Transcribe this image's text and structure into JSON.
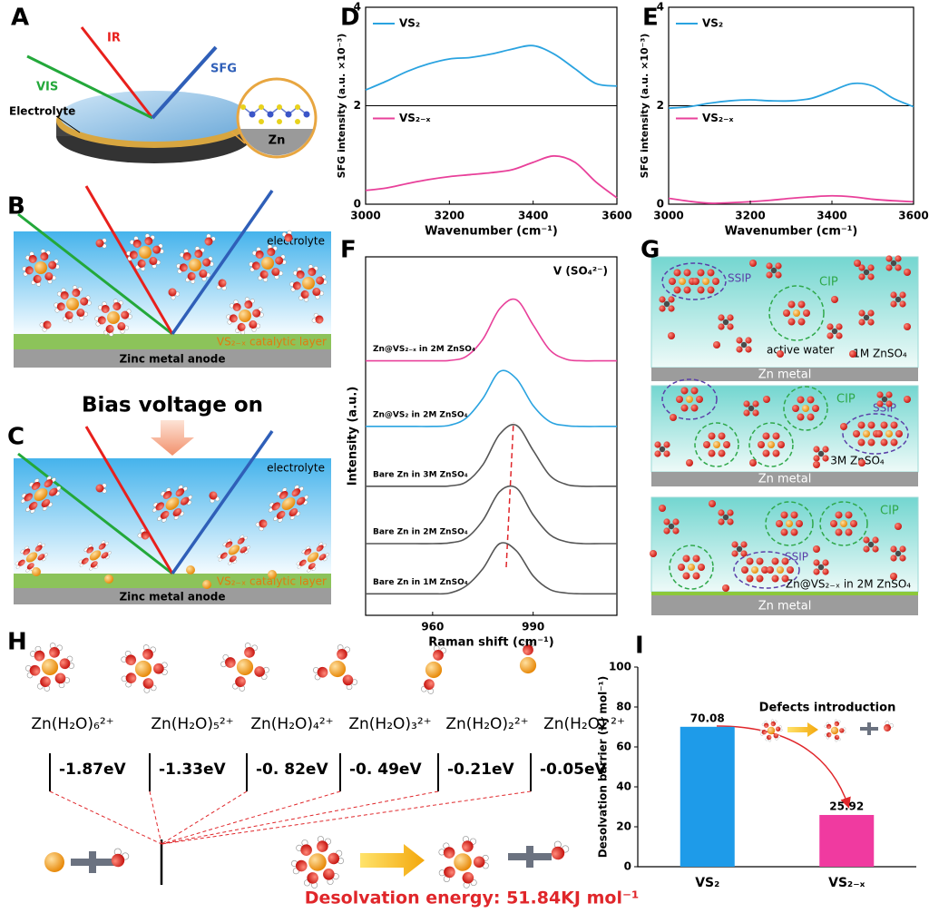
{
  "panel_labels": [
    "A",
    "B",
    "C",
    "D",
    "E",
    "F",
    "G",
    "H",
    "I"
  ],
  "panel_a": {
    "ir": "IR",
    "vis": "VIS",
    "sfg": "SFG",
    "electrolyte": "Electrolyte",
    "zn": "Zn"
  },
  "panel_b": {
    "electrolyte": "electrolyte",
    "layer": "VS₂₋ₓ catalytic layer",
    "anode": "Zinc metal anode"
  },
  "bias": "Bias voltage on",
  "panel_c": {
    "electrolyte": "electrolyte",
    "layer": "VS₂₋ₓ catalytic layer",
    "anode": "Zinc metal anode"
  },
  "panel_g": [
    {
      "ssip": "SSIP",
      "cip": "CIP",
      "water": "active water",
      "solution": "1M ZnSO₄",
      "metal": "Zn metal"
    },
    {
      "cip": "CIP",
      "ssip": "SSIP",
      "solution": "3M ZnSO₄",
      "metal": "Zn metal"
    },
    {
      "cip": "CIP",
      "ssip": "SSIP",
      "solution": "Zn@VS₂₋ₓ in 2M ZnSO₄",
      "metal": "Zn metal"
    }
  ],
  "panel_h": {
    "species": [
      "Zn(H₂O)₆²⁺",
      "Zn(H₂O)₅²⁺",
      "Zn(H₂O)₄²⁺",
      "Zn(H₂O)₃²⁺",
      "Zn(H₂O)₂²⁺",
      "Zn(H₂O) ²⁺"
    ],
    "energies": [
      "-1.87eV",
      "-1.33eV",
      "-0. 82eV",
      "-0. 49eV",
      "-0.21eV",
      "-0.05eV"
    ],
    "desolvation": "Desolvation energy: 51.84KJ mol⁻¹"
  },
  "chart_data": [
    {
      "type": "line",
      "x": [
        3000,
        3050,
        3100,
        3150,
        3200,
        3250,
        3300,
        3350,
        3400,
        3450,
        3500,
        3550,
        3600
      ],
      "series": [
        {
          "name": "VS₂",
          "color": "#2aa3e0",
          "values": [
            2.32,
            2.5,
            2.7,
            2.85,
            2.95,
            2.98,
            3.05,
            3.15,
            3.22,
            3.05,
            2.75,
            2.45,
            2.4
          ]
        },
        {
          "name": "VS₂₋ₓ",
          "color": "#e8409a",
          "values": [
            0.28,
            0.33,
            0.42,
            0.5,
            0.56,
            0.6,
            0.64,
            0.7,
            0.85,
            0.98,
            0.85,
            0.45,
            0.13
          ]
        }
      ],
      "xlim": [
        3000,
        3600
      ],
      "xticks": [
        3000,
        3200,
        3400,
        3600
      ],
      "ylim": [
        0,
        4
      ],
      "yticks": [
        0,
        2,
        4
      ],
      "xlabel": "Wavenumber (cm⁻¹)",
      "ylabel": "SFG intensity (a.u. ×10⁻³)"
    },
    {
      "type": "line",
      "x": [
        3000,
        3050,
        3100,
        3150,
        3200,
        3250,
        3300,
        3350,
        3400,
        3450,
        3500,
        3550,
        3600
      ],
      "series": [
        {
          "name": "VS₂",
          "color": "#2aa3e0",
          "values": [
            1.95,
            1.98,
            2.05,
            2.1,
            2.12,
            2.1,
            2.1,
            2.15,
            2.3,
            2.45,
            2.4,
            2.15,
            1.98
          ]
        },
        {
          "name": "VS₂₋ₓ",
          "color": "#e8409a",
          "values": [
            0.12,
            0.06,
            0.02,
            0.03,
            0.05,
            0.08,
            0.12,
            0.15,
            0.17,
            0.15,
            0.1,
            0.07,
            0.05
          ]
        }
      ],
      "xlim": [
        3000,
        3600
      ],
      "xticks": [
        3000,
        3200,
        3400,
        3600
      ],
      "ylim": [
        0,
        4
      ],
      "yticks": [
        0,
        2,
        4
      ],
      "xlabel": "Wavenumber (cm⁻¹)",
      "ylabel": "SFG intensity (a.u. ×10⁻³)"
    },
    {
      "type": "raman",
      "title": "V (SO₄²⁻)",
      "x": [
        940,
        945,
        950,
        955,
        960,
        965,
        970,
        975,
        980,
        985,
        990,
        995,
        1000,
        1005,
        1010,
        1015
      ],
      "series": [
        {
          "name": "Zn@VS₂₋ₓ in 2M ZnSO₄",
          "color": "#e8409a",
          "values": [
            7.1,
            7.1,
            7.1,
            7.1,
            7.1,
            7.11,
            7.22,
            7.7,
            8.55,
            8.8,
            8.1,
            7.4,
            7.14,
            7.1,
            7.1,
            7.1
          ]
        },
        {
          "name": "Zn@VS₂ in 2M ZnSO₄",
          "color": "#2aa3e0",
          "values": [
            5.27,
            5.27,
            5.27,
            5.27,
            5.27,
            5.3,
            5.5,
            6.05,
            6.8,
            6.6,
            5.85,
            5.4,
            5.29,
            5.27,
            5.27,
            5.27
          ]
        },
        {
          "name": "Bare Zn in 3M ZnSO₄",
          "color": "#555555",
          "values": [
            3.6,
            3.6,
            3.6,
            3.6,
            3.6,
            3.61,
            3.72,
            4.2,
            5.05,
            5.3,
            4.6,
            3.9,
            3.65,
            3.6,
            3.6,
            3.6
          ]
        },
        {
          "name": "Bare Zn in 2M ZnSO₄",
          "color": "#555555",
          "values": [
            2.0,
            2.0,
            2.0,
            2.0,
            2.0,
            2.02,
            2.15,
            2.65,
            3.45,
            3.55,
            2.8,
            2.25,
            2.05,
            2.0,
            2.0,
            2.0
          ]
        },
        {
          "name": "Bare Zn in 1M ZnSO₄",
          "color": "#555555",
          "values": [
            0.6,
            0.6,
            0.6,
            0.6,
            0.6,
            0.62,
            0.82,
            1.3,
            2.0,
            1.8,
            1.1,
            0.72,
            0.62,
            0.6,
            0.6,
            0.6
          ]
        }
      ],
      "xlim": [
        940,
        1015
      ],
      "xticks": [
        960,
        990
      ],
      "ylim": [
        0,
        10
      ],
      "xlabel": "Raman shift (cm⁻¹)",
      "ylabel": "Intensity (a.u.)"
    },
    {
      "type": "bar",
      "categories": [
        "VS₂",
        "VS₂₋ₓ"
      ],
      "values": [
        70.08,
        25.92
      ],
      "colors": [
        "#1e9be9",
        "#f03aa0"
      ],
      "ylim": [
        0,
        100
      ],
      "yticks": [
        0,
        20,
        40,
        60,
        80,
        100
      ],
      "ylabel": "Desolvation barrier (KJ mol⁻¹)",
      "annotation": "Defects introduction"
    }
  ]
}
